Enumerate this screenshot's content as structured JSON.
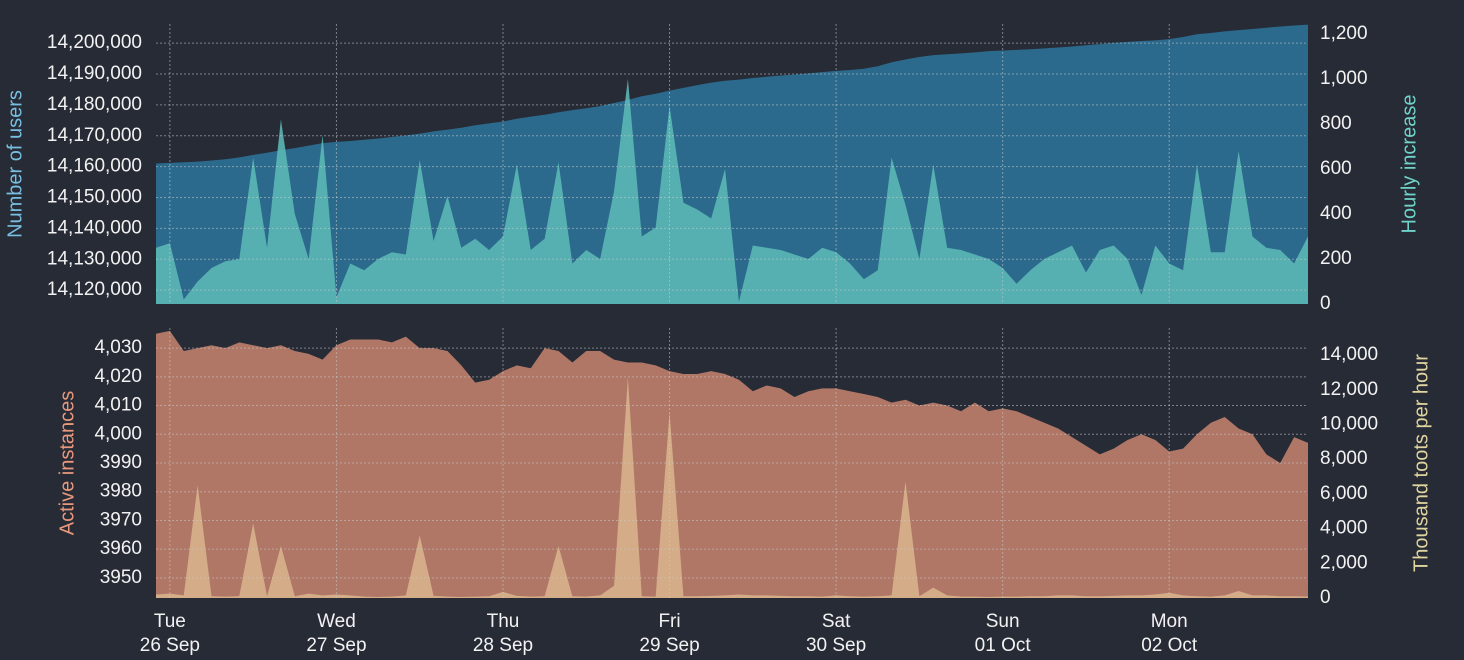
{
  "chart_data": [
    {
      "type": "area",
      "ylim": [
        14115500,
        14206200
      ],
      "yticks": [
        {
          "value": 14120000,
          "label": "14,120,000"
        },
        {
          "value": 14130000,
          "label": "14,130,000"
        },
        {
          "value": 14140000,
          "label": "14,140,000"
        },
        {
          "value": 14150000,
          "label": "14,150,000"
        },
        {
          "value": 14160000,
          "label": "14,160,000"
        },
        {
          "value": 14170000,
          "label": "14,170,000"
        },
        {
          "value": 14180000,
          "label": "14,180,000"
        },
        {
          "value": 14190000,
          "label": "14,190,000"
        },
        {
          "value": 14200000,
          "label": "14,200,000"
        }
      ],
      "y2lim": [
        0,
        1244
      ],
      "y2ticks": [
        0,
        200,
        400,
        600,
        800,
        {
          "value": 1000,
          "label": "1,000"
        },
        {
          "value": 1200,
          "label": "1,200"
        }
      ],
      "grid": true,
      "series": [
        {
          "name": "Number of users",
          "color": "#2b6a8c",
          "label_color": "#78bfe0",
          "axis": "y",
          "values": [
            14161000,
            14161200,
            14161400,
            14161600,
            14162000,
            14162400,
            14163000,
            14163800,
            14164500,
            14165300,
            14166000,
            14166800,
            14167600,
            14168000,
            14168300,
            14168700,
            14169100,
            14169600,
            14170100,
            14170700,
            14171400,
            14172000,
            14172600,
            14173400,
            14174000,
            14174600,
            14175500,
            14176200,
            14176800,
            14177600,
            14178300,
            14178900,
            14179600,
            14180600,
            14181600,
            14182800,
            14183600,
            14184600,
            14185500,
            14186400,
            14187200,
            14187800,
            14188200,
            14188700,
            14189100,
            14189500,
            14189800,
            14190200,
            14190600,
            14191000,
            14191300,
            14191700,
            14192500,
            14193800,
            14194700,
            14195500,
            14196100,
            14196400,
            14196700,
            14197000,
            14197400,
            14197600,
            14197800,
            14198000,
            14198300,
            14198600,
            14198900,
            14199300,
            14199700,
            14200100,
            14200400,
            14200700,
            14200900,
            14201300,
            14202000,
            14202900,
            14203300,
            14203800,
            14204200,
            14204600,
            14205000,
            14205400,
            14205700,
            14206000
          ]
        },
        {
          "name": "Hourly increase",
          "color": "#5cb9b6",
          "label_color": "#6fd3c9",
          "axis": "y2",
          "values": [
            250,
            270,
            20,
            100,
            160,
            190,
            200,
            650,
            250,
            820,
            400,
            200,
            750,
            30,
            180,
            150,
            200,
            230,
            220,
            640,
            280,
            480,
            250,
            290,
            240,
            300,
            620,
            240,
            290,
            630,
            180,
            240,
            200,
            500,
            1000,
            300,
            340,
            880,
            450,
            420,
            380,
            600,
            10,
            260,
            250,
            240,
            220,
            200,
            250,
            230,
            180,
            110,
            150,
            650,
            440,
            200,
            620,
            250,
            240,
            220,
            200,
            160,
            90,
            150,
            200,
            230,
            260,
            140,
            240,
            260,
            200,
            40,
            260,
            180,
            150,
            620,
            230,
            230,
            680,
            300,
            250,
            240,
            180,
            300
          ]
        }
      ]
    },
    {
      "type": "area",
      "categories": [
        null,
        [
          "Tue",
          "26 Sep"
        ],
        null,
        null,
        null,
        null,
        null,
        null,
        null,
        null,
        null,
        null,
        null,
        [
          "Wed",
          "27 Sep"
        ],
        null,
        null,
        null,
        null,
        null,
        null,
        null,
        null,
        null,
        null,
        null,
        [
          "Thu",
          "28 Sep"
        ],
        null,
        null,
        null,
        null,
        null,
        null,
        null,
        null,
        null,
        null,
        null,
        [
          "Fri",
          "29 Sep"
        ],
        null,
        null,
        null,
        null,
        null,
        null,
        null,
        null,
        null,
        null,
        null,
        [
          "Sat",
          "30 Sep"
        ],
        null,
        null,
        null,
        null,
        null,
        null,
        null,
        null,
        null,
        null,
        null,
        [
          "Sun",
          "01 Oct"
        ],
        null,
        null,
        null,
        null,
        null,
        null,
        null,
        null,
        null,
        null,
        null,
        [
          "Mon",
          "02 Oct"
        ],
        null,
        null,
        null,
        null,
        null,
        null,
        null,
        null,
        null,
        null
      ],
      "ylim": [
        3943,
        4037
      ],
      "yticks": [
        3950,
        3960,
        3970,
        3980,
        3990,
        {
          "value": 4000,
          "label": "4,000"
        },
        {
          "value": 4010,
          "label": "4,010"
        },
        {
          "value": 4020,
          "label": "4,020"
        },
        {
          "value": 4030,
          "label": "4,030"
        }
      ],
      "y2lim": [
        0,
        15560
      ],
      "y2ticks": [
        0,
        {
          "value": 2000,
          "label": "2,000"
        },
        {
          "value": 4000,
          "label": "4,000"
        },
        {
          "value": 6000,
          "label": "6,000"
        },
        {
          "value": 8000,
          "label": "8,000"
        },
        {
          "value": 10000,
          "label": "10,000"
        },
        {
          "value": 12000,
          "label": "12,000"
        },
        {
          "value": 14000,
          "label": "14,000"
        }
      ],
      "grid": true,
      "series": [
        {
          "name": "Active instances",
          "color": "#b07767",
          "label_color": "#e8987c",
          "axis": "y",
          "values": [
            4035,
            4036,
            4029,
            4030,
            4031,
            4030,
            4032,
            4031,
            4030,
            4031,
            4029,
            4028,
            4026,
            4031,
            4033,
            4033,
            4033,
            4032,
            4034,
            4030,
            4030,
            4029,
            4024,
            4018,
            4019,
            4022,
            4024,
            4023,
            4030,
            4029,
            4025,
            4029,
            4029,
            4026,
            4025,
            4025,
            4024,
            4022,
            4021,
            4021,
            4022,
            4021,
            4019,
            4015,
            4017,
            4016,
            4013,
            4015,
            4016,
            4016,
            4015,
            4014,
            4013,
            4011,
            4012,
            4010,
            4011,
            4010,
            4008,
            4011,
            4008,
            4009,
            4008,
            4006,
            4004,
            4002,
            3999,
            3996,
            3993,
            3995,
            3998,
            4000,
            3998,
            3994,
            3995,
            4000,
            4004,
            4006,
            4002,
            4000,
            3993,
            3990,
            3999,
            3997
          ]
        },
        {
          "name": "Thousand toots per hour",
          "color": "#d8b58d",
          "label_color": "#e0d49f",
          "axis": "y2",
          "values": [
            200,
            250,
            150,
            6500,
            100,
            80,
            100,
            4300,
            100,
            3000,
            100,
            250,
            150,
            200,
            150,
            80,
            60,
            80,
            150,
            3600,
            120,
            80,
            60,
            80,
            100,
            350,
            120,
            80,
            100,
            3000,
            100,
            80,
            150,
            700,
            12700,
            100,
            80,
            10700,
            100,
            100,
            120,
            150,
            200,
            150,
            150,
            120,
            100,
            100,
            80,
            150,
            100,
            80,
            100,
            150,
            6700,
            100,
            600,
            150,
            80,
            80,
            60,
            80,
            80,
            100,
            100,
            150,
            150,
            100,
            100,
            120,
            150,
            150,
            200,
            300,
            150,
            100,
            80,
            150,
            400,
            150,
            150,
            100,
            100,
            80
          ]
        }
      ]
    }
  ]
}
